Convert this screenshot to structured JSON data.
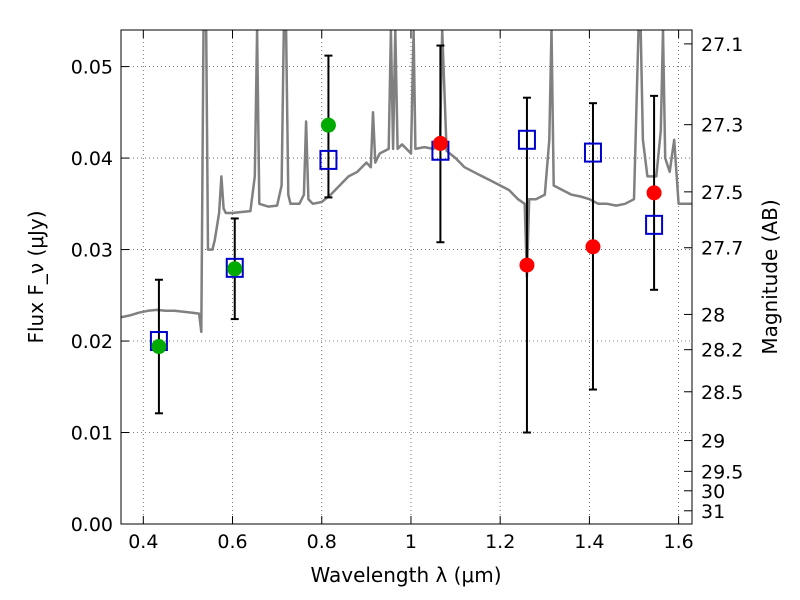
{
  "chart_data": {
    "type": "scatter",
    "xlabel": "Wavelength λ (μm)",
    "ylabel": "Flux F_ν (μJy)",
    "y2label": "Magnitude (AB)",
    "xlim": [
      0.35,
      1.63
    ],
    "ylim": [
      0.0,
      0.054
    ],
    "grid": true,
    "x_ticks": [
      "0.4",
      "0.6",
      "0.8",
      "1",
      "1.2",
      "1.4",
      "1.6"
    ],
    "y_ticks": [
      "0.00",
      "0.01",
      "0.02",
      "0.03",
      "0.04",
      "0.05"
    ],
    "mag_ticks": [
      "27.1",
      "27.3",
      "27.5",
      "27.7",
      "28",
      "28.2",
      "28.5",
      "29",
      "29.5",
      "30",
      "31"
    ],
    "colors": {
      "model": "#808080",
      "green": "#00aa00",
      "red": "#ff0000",
      "squares": "#0000cc",
      "errorbars": "#000000",
      "grid": "#555555"
    },
    "series": [
      {
        "marker": "circle",
        "color": "#00aa00",
        "x": [
          0.435,
          0.605,
          0.815
        ],
        "y": [
          0.0194,
          0.0279,
          0.0436
        ]
      },
      {
        "marker": "circle",
        "color": "#ff0000",
        "x": [
          1.066,
          1.26,
          1.408,
          1.545
        ],
        "y": [
          0.0416,
          0.0283,
          0.0303,
          0.0362
        ]
      },
      {
        "marker": "open-square",
        "color": "#0000cc",
        "x": [
          0.435,
          0.605,
          0.815,
          1.066,
          1.26,
          1.408,
          1.545
        ],
        "y": [
          0.02,
          0.028,
          0.0398,
          0.0408,
          0.042,
          0.0406,
          0.0327
        ]
      }
    ],
    "errorbars": {
      "x": [
        0.435,
        0.605,
        0.815,
        1.066,
        1.26,
        1.408,
        1.545
      ],
      "low": [
        0.0121,
        0.0224,
        0.0357,
        0.0308,
        0.01,
        0.0147,
        0.0256
      ],
      "high": [
        0.0267,
        0.0334,
        0.0512,
        0.0523,
        0.0466,
        0.046,
        0.0468
      ]
    },
    "model_spectrum": {
      "x": [
        0.35,
        0.37,
        0.39,
        0.41,
        0.43,
        0.45,
        0.47,
        0.49,
        0.51,
        0.525,
        0.53,
        0.535,
        0.538,
        0.541,
        0.545,
        0.55,
        0.555,
        0.56,
        0.57,
        0.575,
        0.58,
        0.585,
        0.59,
        0.6,
        0.62,
        0.64,
        0.65,
        0.655,
        0.66,
        0.68,
        0.7,
        0.71,
        0.715,
        0.72,
        0.725,
        0.73,
        0.75,
        0.76,
        0.765,
        0.77,
        0.78,
        0.8,
        0.82,
        0.84,
        0.86,
        0.88,
        0.9,
        0.91,
        0.915,
        0.92,
        0.93,
        0.95,
        0.955,
        0.96,
        0.965,
        0.97,
        0.98,
        0.99,
        1.0,
        1.006,
        1.01,
        1.03,
        1.05,
        1.065,
        1.07,
        1.08,
        1.1,
        1.12,
        1.14,
        1.16,
        1.18,
        1.2,
        1.22,
        1.24,
        1.255,
        1.26,
        1.265,
        1.28,
        1.3,
        1.31,
        1.315,
        1.32,
        1.34,
        1.36,
        1.38,
        1.4,
        1.42,
        1.44,
        1.46,
        1.48,
        1.5,
        1.51,
        1.515,
        1.52,
        1.53,
        1.55,
        1.56,
        1.565,
        1.57,
        1.58,
        1.59,
        1.6,
        1.63
      ],
      "y": [
        0.0226,
        0.0228,
        0.0231,
        0.0233,
        0.0234,
        0.0233,
        0.0233,
        0.0232,
        0.0231,
        0.023,
        0.021,
        0.054,
        0.054,
        0.054,
        0.03,
        0.03,
        0.03,
        0.031,
        0.034,
        0.038,
        0.0345,
        0.034,
        0.034,
        0.034,
        0.0341,
        0.0342,
        0.038,
        0.054,
        0.035,
        0.0347,
        0.0348,
        0.037,
        0.054,
        0.054,
        0.036,
        0.035,
        0.035,
        0.036,
        0.044,
        0.0355,
        0.035,
        0.0352,
        0.036,
        0.037,
        0.038,
        0.0385,
        0.0395,
        0.039,
        0.045,
        0.0395,
        0.0405,
        0.041,
        0.054,
        0.041,
        0.054,
        0.041,
        0.0415,
        0.041,
        0.0405,
        0.054,
        0.041,
        0.0412,
        0.041,
        0.0415,
        0.054,
        0.0408,
        0.04,
        0.039,
        0.0385,
        0.038,
        0.0375,
        0.037,
        0.0365,
        0.0355,
        0.035,
        0.027,
        0.0355,
        0.0355,
        0.036,
        0.042,
        0.054,
        0.037,
        0.0365,
        0.036,
        0.0358,
        0.0355,
        0.035,
        0.035,
        0.0348,
        0.035,
        0.0355,
        0.054,
        0.054,
        0.042,
        0.038,
        0.038,
        0.043,
        0.054,
        0.04,
        0.0385,
        0.042,
        0.035,
        0.035
      ]
    }
  }
}
